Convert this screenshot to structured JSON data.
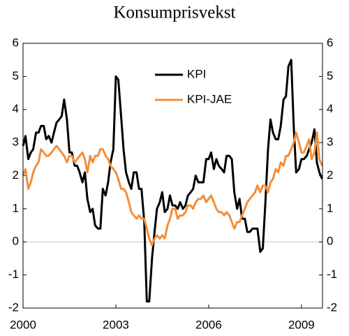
{
  "chart_data": {
    "type": "line",
    "title": "Konsumprisvekst",
    "x": [
      2000,
      2000.08,
      2000.17,
      2000.25,
      2000.33,
      2000.42,
      2000.5,
      2000.58,
      2000.67,
      2000.75,
      2000.83,
      2000.92,
      2001,
      2001.08,
      2001.17,
      2001.25,
      2001.33,
      2001.42,
      2001.5,
      2001.58,
      2001.67,
      2001.75,
      2001.83,
      2001.92,
      2002,
      2002.08,
      2002.17,
      2002.25,
      2002.33,
      2002.42,
      2002.5,
      2002.58,
      2002.67,
      2002.75,
      2002.83,
      2002.92,
      2003,
      2003.08,
      2003.17,
      2003.25,
      2003.33,
      2003.42,
      2003.5,
      2003.58,
      2003.67,
      2003.75,
      2003.83,
      2003.92,
      2004,
      2004.08,
      2004.17,
      2004.25,
      2004.33,
      2004.42,
      2004.5,
      2004.58,
      2004.67,
      2004.75,
      2004.83,
      2004.92,
      2005,
      2005.08,
      2005.17,
      2005.25,
      2005.33,
      2005.42,
      2005.5,
      2005.58,
      2005.67,
      2005.75,
      2005.83,
      2005.92,
      2006,
      2006.08,
      2006.17,
      2006.25,
      2006.33,
      2006.42,
      2006.5,
      2006.58,
      2006.67,
      2006.75,
      2006.83,
      2006.92,
      2007,
      2007.08,
      2007.17,
      2007.25,
      2007.33,
      2007.42,
      2007.5,
      2007.58,
      2007.67,
      2007.75,
      2007.83,
      2007.92,
      2008,
      2008.08,
      2008.17,
      2008.25,
      2008.33,
      2008.42,
      2008.5,
      2008.58,
      2008.67,
      2008.75,
      2008.83,
      2008.92,
      2009,
      2009.08,
      2009.17,
      2009.25,
      2009.33,
      2009.42,
      2009.5,
      2009.58,
      2009.67
    ],
    "series": [
      {
        "name": "KPI",
        "color": "#000000",
        "values": [
          2.9,
          3.2,
          2.5,
          2.7,
          2.8,
          3.3,
          3.3,
          3.5,
          3.5,
          3.1,
          3.2,
          3.0,
          3.3,
          3.6,
          3.7,
          3.8,
          4.3,
          3.7,
          2.7,
          2.7,
          2.3,
          2.3,
          2.1,
          1.8,
          2.1,
          1.3,
          0.9,
          1.0,
          0.5,
          0.4,
          0.4,
          1.6,
          1.4,
          1.8,
          2.4,
          2.8,
          5.0,
          4.9,
          3.8,
          2.8,
          2.1,
          1.8,
          1.6,
          2.1,
          2.1,
          1.6,
          1.6,
          0.6,
          -1.8,
          -1.8,
          -0.5,
          0.3,
          1.0,
          1.2,
          1.5,
          0.9,
          1.0,
          1.4,
          1.1,
          1.1,
          1.0,
          1.2,
          1.0,
          1.1,
          1.4,
          1.5,
          1.6,
          2.0,
          1.8,
          1.8,
          1.8,
          2.5,
          2.5,
          2.7,
          2.2,
          2.5,
          2.3,
          2.2,
          2.1,
          2.6,
          2.6,
          2.5,
          1.5,
          1.0,
          1.3,
          0.7,
          0.7,
          0.3,
          0.3,
          0.4,
          0.4,
          0.4,
          -0.3,
          -0.2,
          1.1,
          2.8,
          3.7,
          3.3,
          3.1,
          3.1,
          3.5,
          4.3,
          4.4,
          5.3,
          5.5,
          3.5,
          2.1,
          2.2,
          2.5,
          2.5,
          2.6,
          2.8,
          3.0,
          3.4,
          2.4,
          2.1,
          1.9
        ]
      },
      {
        "name": "KPI-JAE",
        "color": "#f28e3b",
        "values": [
          2.0,
          2.2,
          1.6,
          1.8,
          2.1,
          2.3,
          2.4,
          2.8,
          2.7,
          2.6,
          2.6,
          2.7,
          2.8,
          2.9,
          2.8,
          2.7,
          2.6,
          2.4,
          2.6,
          2.6,
          2.4,
          2.5,
          2.6,
          2.7,
          2.5,
          2.1,
          2.6,
          2.4,
          2.6,
          2.6,
          2.8,
          2.8,
          2.6,
          2.5,
          2.3,
          2.2,
          2.1,
          1.9,
          1.6,
          1.6,
          1.5,
          1.2,
          0.9,
          0.8,
          0.7,
          0.8,
          0.7,
          0.7,
          0.4,
          0.1,
          -0.1,
          0.1,
          0.2,
          0.1,
          0.2,
          0.1,
          0.5,
          0.7,
          1.0,
          1.0,
          0.7,
          0.8,
          0.8,
          0.9,
          1.1,
          1.1,
          1.0,
          1.2,
          1.3,
          1.3,
          1.4,
          1.2,
          1.3,
          1.4,
          1.2,
          1.0,
          0.9,
          0.9,
          0.8,
          0.9,
          0.8,
          0.6,
          0.4,
          0.6,
          0.6,
          0.8,
          1.0,
          1.2,
          1.3,
          1.4,
          1.5,
          1.7,
          1.5,
          1.7,
          1.7,
          1.5,
          1.8,
          1.9,
          2.2,
          2.1,
          2.4,
          2.3,
          2.6,
          2.6,
          2.8,
          3.0,
          3.3,
          3.0,
          2.7,
          2.7,
          2.9,
          3.1,
          2.5,
          2.7,
          3.3,
          2.5,
          2.3
        ]
      }
    ],
    "xlim": [
      2000,
      2009.68
    ],
    "xticks": [
      2000,
      2003,
      2006,
      2009
    ],
    "ylim": [
      -2,
      6
    ],
    "yticks": [
      -2,
      -1,
      0,
      1,
      2,
      3,
      4,
      5,
      6
    ],
    "y2lim": [
      -2,
      6
    ],
    "y2ticks": [
      -2,
      -1,
      0,
      1,
      2,
      3,
      4,
      5,
      6
    ],
    "legend": "top"
  }
}
